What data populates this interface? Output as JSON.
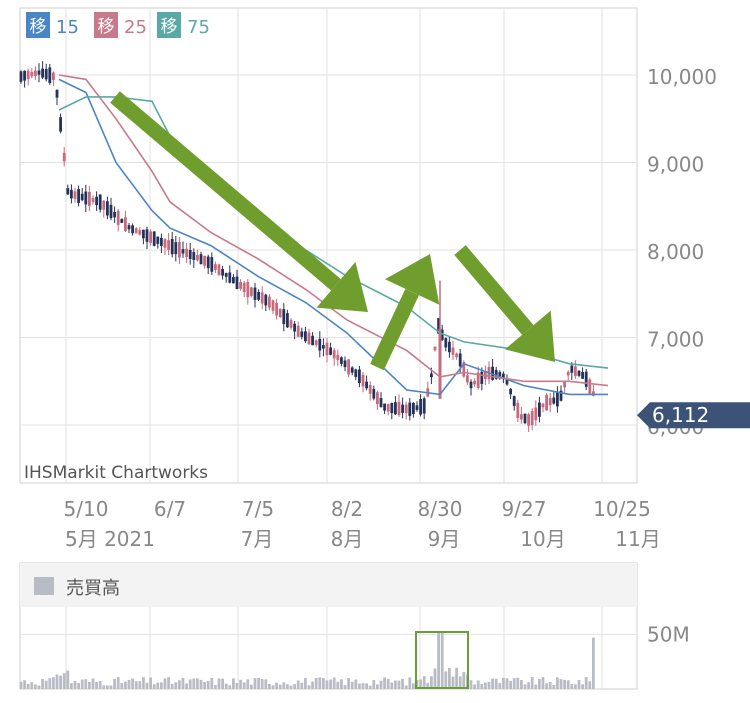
{
  "legend": {
    "ma15": {
      "badge": "移",
      "label": "15",
      "color": "#4a86c5"
    },
    "ma25": {
      "badge": "移",
      "label": "25",
      "color": "#c87a8a"
    },
    "ma75": {
      "badge": "移",
      "label": "75",
      "color": "#5aa9a6"
    }
  },
  "watermark": "IHSMarkit Chartworks",
  "current_price": {
    "label": "6,112",
    "value": 6112,
    "color": "#3d5277"
  },
  "volume_panel": {
    "legend_label": "売買高",
    "legend_swatch_color": "#b8bcc4"
  },
  "colors": {
    "up": "#c86a7c",
    "down": "#25335a",
    "grid": "#e2e2e2",
    "arrow": "#6f9e2e",
    "volume_bar": "#b8bcc4",
    "highlight_box": "#6a9e3a",
    "axis_text": "#888888"
  },
  "chart_data": [
    {
      "type": "candlestick",
      "title": "",
      "ylim": [
        5700,
        10800
      ],
      "y_ticks": [
        {
          "value": 10000,
          "label": "10,000"
        },
        {
          "value": 9000,
          "label": "9,000"
        },
        {
          "value": 8000,
          "label": "8,000"
        },
        {
          "value": 7000,
          "label": "7,000"
        },
        {
          "value": 6000,
          "label": "6,000"
        }
      ],
      "x_date_labels": [
        "5/10",
        "6/7",
        "7/5",
        "8/2",
        "8/30",
        "9/27",
        "10/25"
      ],
      "x_month_labels": [
        "5月 2021",
        "7月",
        "8月",
        "9月",
        "10月",
        "11月"
      ],
      "grid": true,
      "candles_approx": [
        {
          "period": "late Apr – 5/10",
          "open": 10050,
          "high": 10200,
          "low": 9800,
          "close": 10000
        },
        {
          "period": "5/12 gap down",
          "open": 9550,
          "high": 9700,
          "low": 9100,
          "close": 9200
        },
        {
          "period": "mid May",
          "open": 8700,
          "high": 8900,
          "low": 8350,
          "close": 8550
        },
        {
          "period": "6/7",
          "open": 8150,
          "high": 8250,
          "low": 8000,
          "close": 8100
        },
        {
          "period": "7/5",
          "open": 7700,
          "high": 7800,
          "low": 7400,
          "close": 7550
        },
        {
          "period": "8/2",
          "open": 6900,
          "high": 7000,
          "low": 6700,
          "close": 6800
        },
        {
          "period": "8/20 low",
          "open": 6250,
          "high": 6350,
          "low": 6000,
          "close": 6150
        },
        {
          "period": "8/30 spike",
          "open": 6300,
          "high": 7650,
          "low": 6300,
          "close": 7100
        },
        {
          "period": "9/3",
          "open": 7100,
          "high": 7200,
          "low": 6900,
          "close": 7000
        },
        {
          "period": "9/27",
          "open": 6300,
          "high": 6400,
          "low": 5950,
          "close": 6050
        },
        {
          "period": "10/18",
          "open": 6600,
          "high": 6750,
          "low": 6500,
          "close": 6550
        },
        {
          "period": "10/21 last",
          "open": 6350,
          "high": 6400,
          "low": 6080,
          "close": 6112
        }
      ],
      "series": [
        {
          "name": "15",
          "color": "#4a86c5",
          "points": [
            [
              "5/1",
              9950
            ],
            [
              "5/10",
              9800
            ],
            [
              "5/20",
              9000
            ],
            [
              "6/1",
              8450
            ],
            [
              "6/7",
              8250
            ],
            [
              "6/20",
              8050
            ],
            [
              "7/5",
              7700
            ],
            [
              "7/20",
              7400
            ],
            [
              "8/2",
              7050
            ],
            [
              "8/20",
              6400
            ],
            [
              "8/30",
              6350
            ],
            [
              "9/7",
              6700
            ],
            [
              "9/27",
              6450
            ],
            [
              "10/10",
              6350
            ],
            [
              "10/21",
              6350
            ]
          ]
        },
        {
          "name": "25",
          "color": "#c87a8a",
          "points": [
            [
              "5/1",
              10000
            ],
            [
              "5/10",
              9950
            ],
            [
              "5/20",
              9500
            ],
            [
              "6/1",
              8900
            ],
            [
              "6/7",
              8550
            ],
            [
              "6/20",
              8200
            ],
            [
              "7/5",
              7900
            ],
            [
              "7/20",
              7550
            ],
            [
              "8/2",
              7200
            ],
            [
              "8/20",
              6850
            ],
            [
              "8/30",
              6550
            ],
            [
              "9/7",
              6600
            ],
            [
              "9/27",
              6500
            ],
            [
              "10/10",
              6500
            ],
            [
              "10/21",
              6450
            ]
          ]
        },
        {
          "name": "75",
          "color": "#5aa9a6",
          "points": [
            [
              "5/1",
              9600
            ],
            [
              "5/10",
              9750
            ],
            [
              "5/20",
              9750
            ],
            [
              "6/1",
              9700
            ],
            [
              "6/7",
              9300
            ],
            [
              "6/20",
              8800
            ],
            [
              "7/5",
              8350
            ],
            [
              "7/20",
              8000
            ],
            [
              "8/2",
              7700
            ],
            [
              "8/20",
              7350
            ],
            [
              "8/30",
              7050
            ],
            [
              "9/7",
              6950
            ],
            [
              "9/27",
              6850
            ],
            [
              "10/10",
              6700
            ],
            [
              "10/21",
              6650
            ]
          ]
        }
      ]
    },
    {
      "type": "bar",
      "title": "",
      "y_ticks": [
        {
          "value": 50000000,
          "label": "50M"
        }
      ],
      "ylim": [
        0,
        75000000
      ],
      "highlight": {
        "from": "8/27",
        "to": "9/7"
      },
      "notable_values": [
        {
          "period": "8/30",
          "value": 52000000
        },
        {
          "period": "10/21",
          "value": 47000000
        }
      ]
    }
  ]
}
